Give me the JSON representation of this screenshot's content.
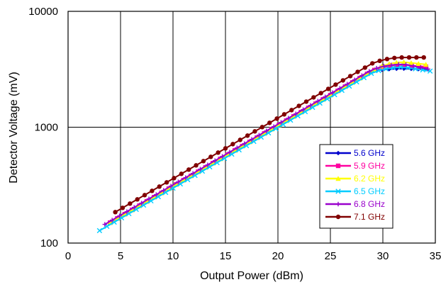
{
  "chart_data": {
    "type": "line",
    "title": "",
    "xlabel": "Output Power (dBm)",
    "ylabel": "Detector Voltage (mV)",
    "xlim": [
      0,
      35
    ],
    "ylim": [
      100,
      10000
    ],
    "yscale": "log",
    "grid": true,
    "legend_position": "right",
    "x_ticks": [
      0,
      5,
      10,
      15,
      20,
      25,
      30,
      35
    ],
    "y_ticks": [
      100,
      1000,
      10000
    ],
    "x_tick_labels": [
      "0",
      "5",
      "10",
      "15",
      "20",
      "25",
      "30",
      "35"
    ],
    "y_tick_labels": [
      "100",
      "1000",
      "10000"
    ],
    "series": [
      {
        "name": "5.6 GHz",
        "color": "#0000CC",
        "marker": "diamond",
        "x_start": 4.0,
        "x_end": 34.5,
        "y_start": 150,
        "y_end": 3150,
        "y_peak": 3200
      },
      {
        "name": "5.9 GHz",
        "color": "#FF00A0",
        "marker": "square",
        "x_start": 4.0,
        "x_end": 34.5,
        "y_start": 150,
        "y_end": 3300,
        "y_peak": 3450
      },
      {
        "name": "6.2 GHz",
        "color": "#FFFF00",
        "marker": "triangle",
        "x_start": 4.0,
        "x_end": 34.5,
        "y_start": 150,
        "y_end": 3450,
        "y_peak": 3650
      },
      {
        "name": "6.5 GHz",
        "color": "#00CCFF",
        "marker": "x",
        "x_start": 3.0,
        "x_end": 34.5,
        "y_start": 128,
        "y_end": 3050,
        "y_peak": 3300
      },
      {
        "name": "6.8 GHz",
        "color": "#9900CC",
        "marker": "plus",
        "x_start": 3.5,
        "x_end": 34.5,
        "y_start": 145,
        "y_end": 3150,
        "y_peak": 3500
      },
      {
        "name": "7.1 GHz",
        "color": "#800000",
        "marker": "circle",
        "x_start": 4.5,
        "x_end": 34.5,
        "y_start": 185,
        "y_end": 4000,
        "y_peak": 4000
      }
    ]
  }
}
